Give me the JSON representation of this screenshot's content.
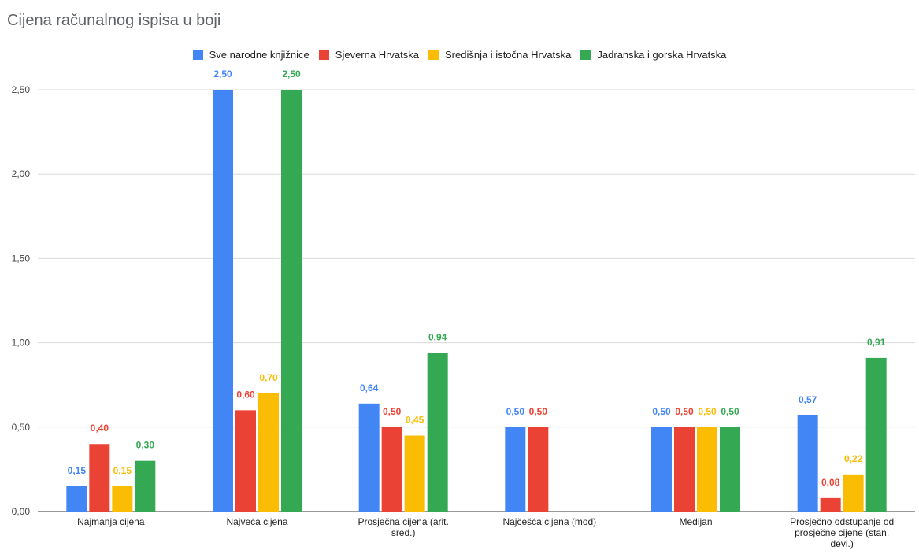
{
  "chart_data": {
    "type": "bar",
    "title": "Cijena računalnog ispisa u boji",
    "categories": [
      [
        "Najmanja cijena"
      ],
      [
        "Najveća cijena"
      ],
      [
        "Prosječna cijena (arit.",
        "sred.)"
      ],
      [
        "Najčešća cijena (mod)"
      ],
      [
        "Medijan"
      ],
      [
        "Prosječno odstupanje od",
        "prosječne cijene (stan.",
        "devi.)"
      ]
    ],
    "series": [
      {
        "name": "Sve narodne knjižnice",
        "color": "#4285f4",
        "values": [
          0.15,
          2.5,
          0.64,
          0.5,
          0.5,
          0.57
        ],
        "labels": [
          "0,15",
          "2,50",
          "0,64",
          "0,50",
          "0,50",
          "0,57"
        ]
      },
      {
        "name": "Sjeverna Hrvatska",
        "color": "#ea4335",
        "values": [
          0.4,
          0.6,
          0.5,
          0.5,
          0.5,
          0.08
        ],
        "labels": [
          "0,40",
          "0,60",
          "0,50",
          "0,50",
          "0,50",
          "0,08"
        ]
      },
      {
        "name": "Središnja i istočna Hrvatska",
        "color": "#fbbc04",
        "values": [
          0.15,
          0.7,
          0.45,
          null,
          0.5,
          0.22
        ],
        "labels": [
          "0,15",
          "0,70",
          "0,45",
          null,
          "0,50",
          "0,22"
        ]
      },
      {
        "name": "Jadranska i gorska Hrvatska",
        "color": "#34a853",
        "values": [
          0.3,
          2.5,
          0.94,
          null,
          0.5,
          0.91
        ],
        "labels": [
          "0,30",
          "2,50",
          "0,94",
          null,
          "0,50",
          "0,91"
        ]
      }
    ],
    "yticks": [
      "0,00",
      "0,50",
      "1,00",
      "1,50",
      "2,00",
      "2,50"
    ],
    "ylim": [
      0,
      2.5
    ],
    "grid": true,
    "legend_position": "top"
  }
}
